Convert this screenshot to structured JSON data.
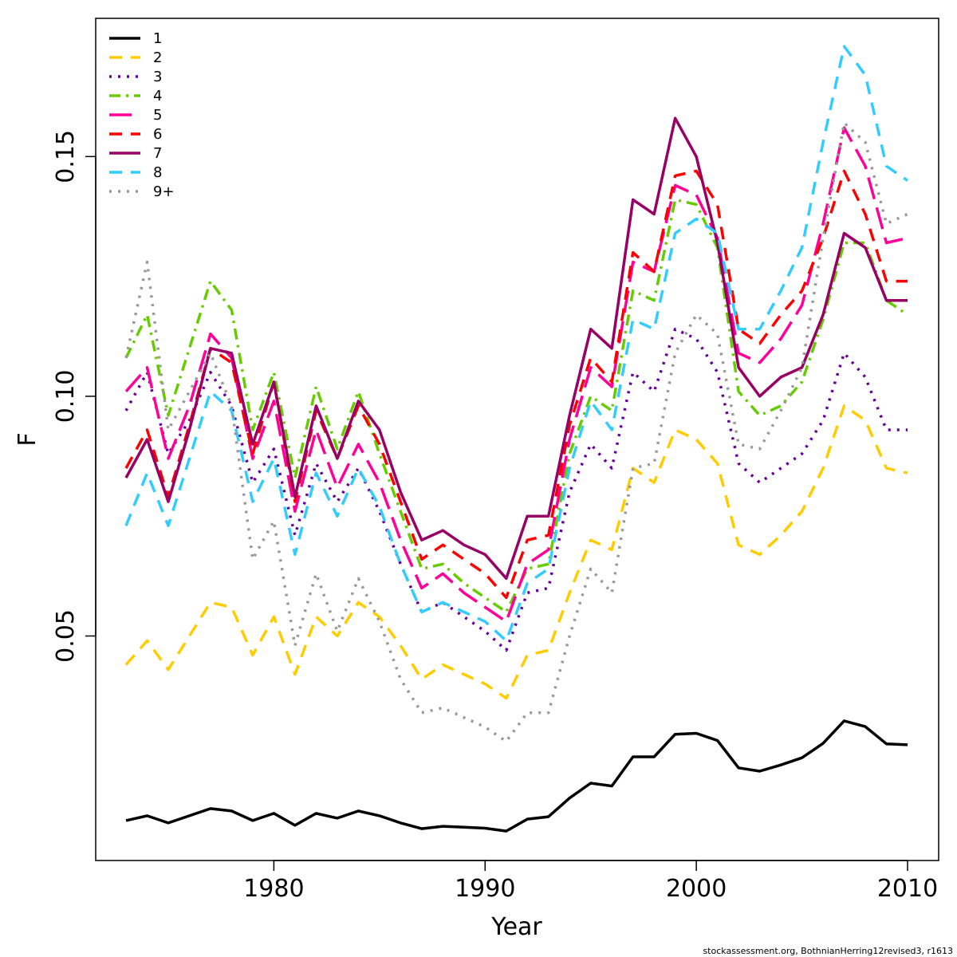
{
  "chart_data": {
    "type": "line",
    "title": "",
    "xlabel": "Year",
    "ylabel": "F",
    "xlim": [
      1973,
      2010
    ],
    "ylim": [
      0.004,
      0.178
    ],
    "x_ticks": [
      1980,
      1990,
      2000,
      2010
    ],
    "y_ticks": [
      0.05,
      0.1,
      0.15
    ],
    "y_tick_labels": [
      "0.05",
      "0.10",
      "0.15"
    ],
    "grid": false,
    "legend_position": "top-left",
    "credit": "stockassessment.org, BothnianHerring12revised3, r1613",
    "x": [
      1973,
      1974,
      1975,
      1976,
      1977,
      1978,
      1979,
      1980,
      1981,
      1982,
      1983,
      1984,
      1985,
      1986,
      1987,
      1988,
      1989,
      1990,
      1991,
      1992,
      1993,
      1994,
      1995,
      1996,
      1997,
      1998,
      1999,
      2000,
      2001,
      2002,
      2003,
      2004,
      2005,
      2006,
      2007,
      2008,
      2009,
      2010
    ],
    "series": [
      {
        "name": "1",
        "color": "#000000",
        "dash": "solid",
        "values": [
          0.0115,
          0.0125,
          0.011,
          0.0125,
          0.014,
          0.0135,
          0.0115,
          0.013,
          0.0105,
          0.013,
          0.012,
          0.0135,
          0.0125,
          0.011,
          0.0098,
          0.0103,
          0.0101,
          0.0099,
          0.0093,
          0.0118,
          0.0123,
          0.0162,
          0.0193,
          0.0187,
          0.0248,
          0.0248,
          0.0295,
          0.0297,
          0.0282,
          0.0225,
          0.0218,
          0.0231,
          0.0246,
          0.0276,
          0.0323,
          0.0311,
          0.0275,
          0.0273
        ]
      },
      {
        "name": "2",
        "color": "#ffcc00",
        "dash": "dash",
        "values": [
          0.044,
          0.049,
          0.043,
          0.05,
          0.057,
          0.056,
          0.046,
          0.054,
          0.042,
          0.054,
          0.05,
          0.057,
          0.054,
          0.048,
          0.041,
          0.044,
          0.042,
          0.04,
          0.037,
          0.046,
          0.047,
          0.059,
          0.07,
          0.068,
          0.085,
          0.082,
          0.093,
          0.091,
          0.086,
          0.069,
          0.067,
          0.071,
          0.076,
          0.085,
          0.098,
          0.095,
          0.085,
          0.084
        ]
      },
      {
        "name": "3",
        "color": "#660099",
        "dash": "dot",
        "values": [
          0.097,
          0.105,
          0.088,
          0.095,
          0.105,
          0.098,
          0.082,
          0.089,
          0.071,
          0.086,
          0.078,
          0.085,
          0.076,
          0.065,
          0.055,
          0.057,
          0.054,
          0.051,
          0.047,
          0.059,
          0.06,
          0.08,
          0.09,
          0.085,
          0.105,
          0.101,
          0.114,
          0.112,
          0.105,
          0.086,
          0.082,
          0.085,
          0.088,
          0.095,
          0.109,
          0.104,
          0.093,
          0.093
        ]
      },
      {
        "name": "4",
        "color": "#66cc00",
        "dash": "dashdot",
        "values": [
          0.108,
          0.117,
          0.096,
          0.11,
          0.124,
          0.118,
          0.093,
          0.105,
          0.083,
          0.102,
          0.089,
          0.101,
          0.088,
          0.076,
          0.064,
          0.065,
          0.061,
          0.058,
          0.055,
          0.064,
          0.065,
          0.088,
          0.1,
          0.097,
          0.122,
          0.12,
          0.141,
          0.14,
          0.131,
          0.101,
          0.096,
          0.098,
          0.103,
          0.116,
          0.132,
          0.132,
          0.12,
          0.117
        ]
      },
      {
        "name": "5",
        "color": "#ff0099",
        "dash": "longdash",
        "values": [
          0.101,
          0.106,
          0.087,
          0.098,
          0.113,
          0.108,
          0.087,
          0.099,
          0.076,
          0.093,
          0.081,
          0.09,
          0.082,
          0.07,
          0.06,
          0.063,
          0.059,
          0.056,
          0.053,
          0.065,
          0.068,
          0.091,
          0.106,
          0.102,
          0.128,
          0.126,
          0.144,
          0.142,
          0.133,
          0.109,
          0.107,
          0.112,
          0.119,
          0.136,
          0.156,
          0.148,
          0.132,
          0.133
        ]
      },
      {
        "name": "6",
        "color": "#ff0000",
        "dash": "dash",
        "values": [
          0.085,
          0.093,
          0.079,
          0.094,
          0.11,
          0.107,
          0.088,
          0.103,
          0.078,
          0.097,
          0.087,
          0.098,
          0.09,
          0.078,
          0.066,
          0.069,
          0.066,
          0.063,
          0.058,
          0.07,
          0.071,
          0.094,
          0.108,
          0.103,
          0.13,
          0.126,
          0.146,
          0.147,
          0.14,
          0.114,
          0.111,
          0.117,
          0.122,
          0.133,
          0.147,
          0.138,
          0.124,
          0.124
        ]
      },
      {
        "name": "7",
        "color": "#990066",
        "dash": "solid",
        "values": [
          0.083,
          0.091,
          0.078,
          0.093,
          0.11,
          0.109,
          0.09,
          0.103,
          0.079,
          0.098,
          0.087,
          0.099,
          0.093,
          0.08,
          0.07,
          0.072,
          0.069,
          0.067,
          0.062,
          0.075,
          0.075,
          0.096,
          0.114,
          0.11,
          0.141,
          0.138,
          0.158,
          0.15,
          0.132,
          0.106,
          0.1,
          0.104,
          0.106,
          0.117,
          0.134,
          0.131,
          0.12,
          0.12
        ]
      },
      {
        "name": "8",
        "color": "#33ccff",
        "dash": "dash",
        "values": [
          0.073,
          0.084,
          0.073,
          0.087,
          0.101,
          0.097,
          0.078,
          0.087,
          0.067,
          0.084,
          0.075,
          0.085,
          0.077,
          0.065,
          0.055,
          0.057,
          0.055,
          0.053,
          0.049,
          0.061,
          0.064,
          0.085,
          0.099,
          0.093,
          0.116,
          0.114,
          0.134,
          0.137,
          0.134,
          0.114,
          0.114,
          0.122,
          0.131,
          0.153,
          0.173,
          0.167,
          0.148,
          0.145
        ]
      },
      {
        "name": "9+",
        "color": "#999999",
        "dash": "dot",
        "values": [
          0.108,
          0.128,
          0.093,
          0.101,
          0.109,
          0.098,
          0.066,
          0.074,
          0.048,
          0.063,
          0.051,
          0.062,
          0.053,
          0.041,
          0.034,
          0.035,
          0.033,
          0.031,
          0.028,
          0.034,
          0.034,
          0.05,
          0.064,
          0.059,
          0.085,
          0.086,
          0.109,
          0.117,
          0.113,
          0.09,
          0.089,
          0.097,
          0.106,
          0.133,
          0.157,
          0.153,
          0.136,
          0.138
        ]
      }
    ]
  }
}
